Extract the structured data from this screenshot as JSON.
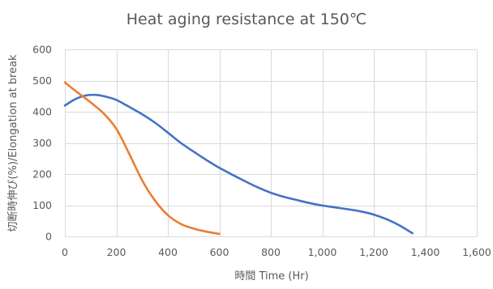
{
  "chart_data": {
    "type": "line",
    "title": "Heat aging resistance at 150℃",
    "xlabel": "時間 Time (Hr)",
    "ylabel": "切断時伸び(%)/Elongation at break",
    "xlim": [
      0,
      1600
    ],
    "ylim": [
      0,
      600
    ],
    "x_ticks": [
      0,
      200,
      400,
      600,
      800,
      1000,
      1200,
      1400,
      1600
    ],
    "x_tick_labels": [
      "0",
      "200",
      "400",
      "600",
      "800",
      "1,000",
      "1,200",
      "1,400",
      "1,600"
    ],
    "y_ticks": [
      0,
      100,
      200,
      300,
      400,
      500,
      600
    ],
    "y_tick_labels": [
      "0",
      "100",
      "200",
      "300",
      "400",
      "500",
      "600"
    ],
    "grid": true,
    "legend": "none",
    "series": [
      {
        "color": "#4472C4",
        "points": [
          [
            0,
            420
          ],
          [
            40,
            440
          ],
          [
            80,
            452
          ],
          [
            120,
            454
          ],
          [
            160,
            448
          ],
          [
            200,
            438
          ],
          [
            240,
            420
          ],
          [
            300,
            392
          ],
          [
            350,
            365
          ],
          [
            400,
            333
          ],
          [
            450,
            300
          ],
          [
            500,
            272
          ],
          [
            550,
            245
          ],
          [
            600,
            220
          ],
          [
            650,
            198
          ],
          [
            700,
            177
          ],
          [
            750,
            157
          ],
          [
            800,
            140
          ],
          [
            850,
            127
          ],
          [
            900,
            117
          ],
          [
            950,
            107
          ],
          [
            1000,
            99
          ],
          [
            1050,
            93
          ],
          [
            1100,
            87
          ],
          [
            1150,
            80
          ],
          [
            1200,
            70
          ],
          [
            1250,
            55
          ],
          [
            1300,
            35
          ],
          [
            1350,
            10
          ]
        ]
      },
      {
        "color": "#ED7D31",
        "points": [
          [
            0,
            494
          ],
          [
            30,
            474
          ],
          [
            60,
            455
          ],
          [
            100,
            430
          ],
          [
            150,
            395
          ],
          [
            200,
            345
          ],
          [
            250,
            265
          ],
          [
            300,
            180
          ],
          [
            350,
            115
          ],
          [
            400,
            68
          ],
          [
            450,
            40
          ],
          [
            500,
            25
          ],
          [
            550,
            15
          ],
          [
            600,
            8
          ]
        ]
      }
    ]
  }
}
